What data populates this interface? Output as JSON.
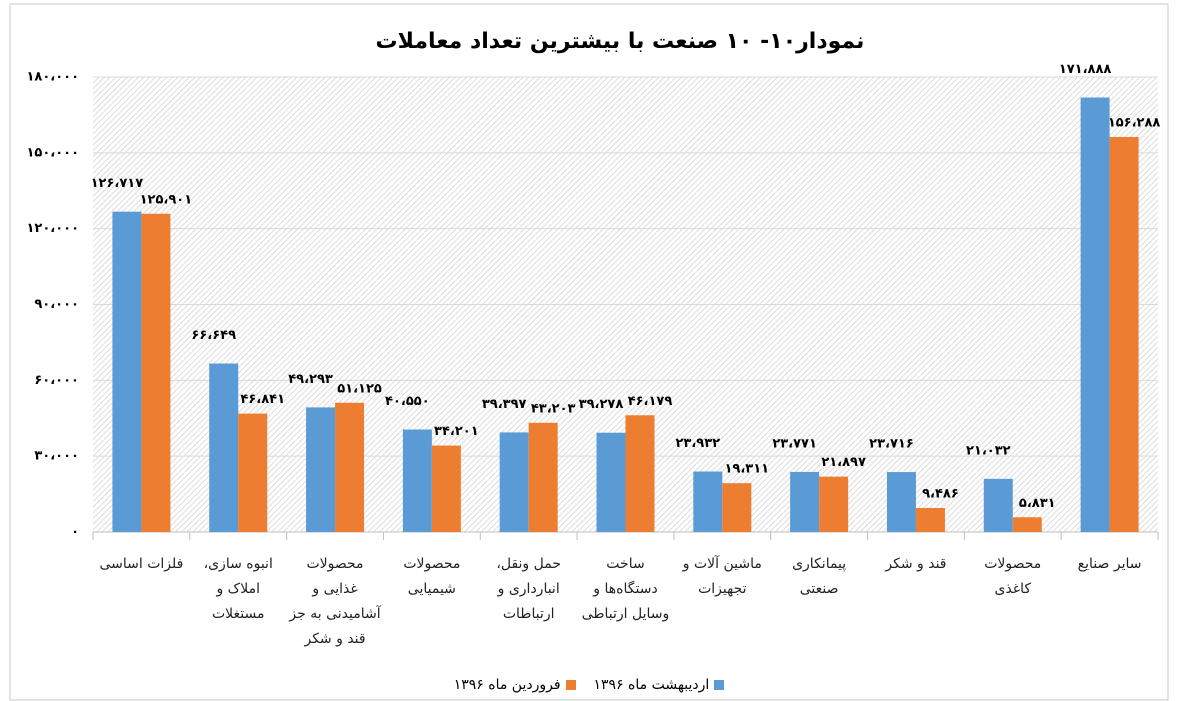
{
  "chart_data": {
    "type": "bar",
    "title": "نمودار۱۰- ۱۰ صنعت با بیشترین تعداد معاملات",
    "categories": [
      "فلزات اساسی",
      "انبوه سازی، املاک و مستغلات",
      "محصولات غذایی و آشامیدنی به جز قند و شکر",
      "محصولات شیمیایی",
      "حمل ونقل، انبارداری و ارتباطات",
      "ساخت دستگاه‌ها و وسایل ارتباطی",
      "ماشین آلات و تجهیزات",
      "پیمانکاری صنعتی",
      "قند و شکر",
      "محصولات کاغذی",
      "سایر صنایع"
    ],
    "series": [
      {
        "name": "اردیبهشت ماه ۱۳۹۶",
        "color": "#5b9bd5",
        "values": [
          126717,
          66649,
          49293,
          40550,
          39397,
          39278,
          23932,
          23771,
          23716,
          21032,
          171888
        ],
        "value_labels": [
          "۱۲۶،۷۱۷",
          "۶۶،۶۴۹",
          "۴۹،۲۹۳",
          "۴۰،۵۵۰",
          "۳۹،۳۹۷",
          "۳۹،۲۷۸",
          "۲۳،۹۳۲",
          "۲۳،۷۷۱",
          "۲۳،۷۱۶",
          "۲۱،۰۳۲",
          "۱۷۱،۸۸۸"
        ]
      },
      {
        "name": "فروردین ماه ۱۳۹۶",
        "color": "#ed7d31",
        "values": [
          125901,
          46841,
          51125,
          34201,
          43203,
          46179,
          19311,
          21897,
          9486,
          5831,
          156288
        ],
        "value_labels": [
          "۱۲۵،۹۰۱",
          "۴۶،۸۴۱",
          "۵۱،۱۲۵",
          "۳۴،۲۰۱",
          "۴۳،۲۰۳",
          "۴۶،۱۷۹",
          "۱۹،۳۱۱",
          "۲۱،۸۹۷",
          "۹،۴۸۶",
          "۵،۸۳۱",
          "۱۵۶،۲۸۸"
        ]
      }
    ],
    "ylim": [
      0,
      180000
    ],
    "yticks": [
      {
        "value": 0,
        "label": "۰"
      },
      {
        "value": 30000,
        "label": "۳۰،۰۰۰"
      },
      {
        "value": 60000,
        "label": "۶۰،۰۰۰"
      },
      {
        "value": 90000,
        "label": "۹۰،۰۰۰"
      },
      {
        "value": 120000,
        "label": "۱۲۰،۰۰۰"
      },
      {
        "value": 150000,
        "label": "۱۵۰،۰۰۰"
      },
      {
        "value": 180000,
        "label": "۱۸۰،۰۰۰"
      }
    ],
    "grid": true,
    "legend": "bottom"
  }
}
